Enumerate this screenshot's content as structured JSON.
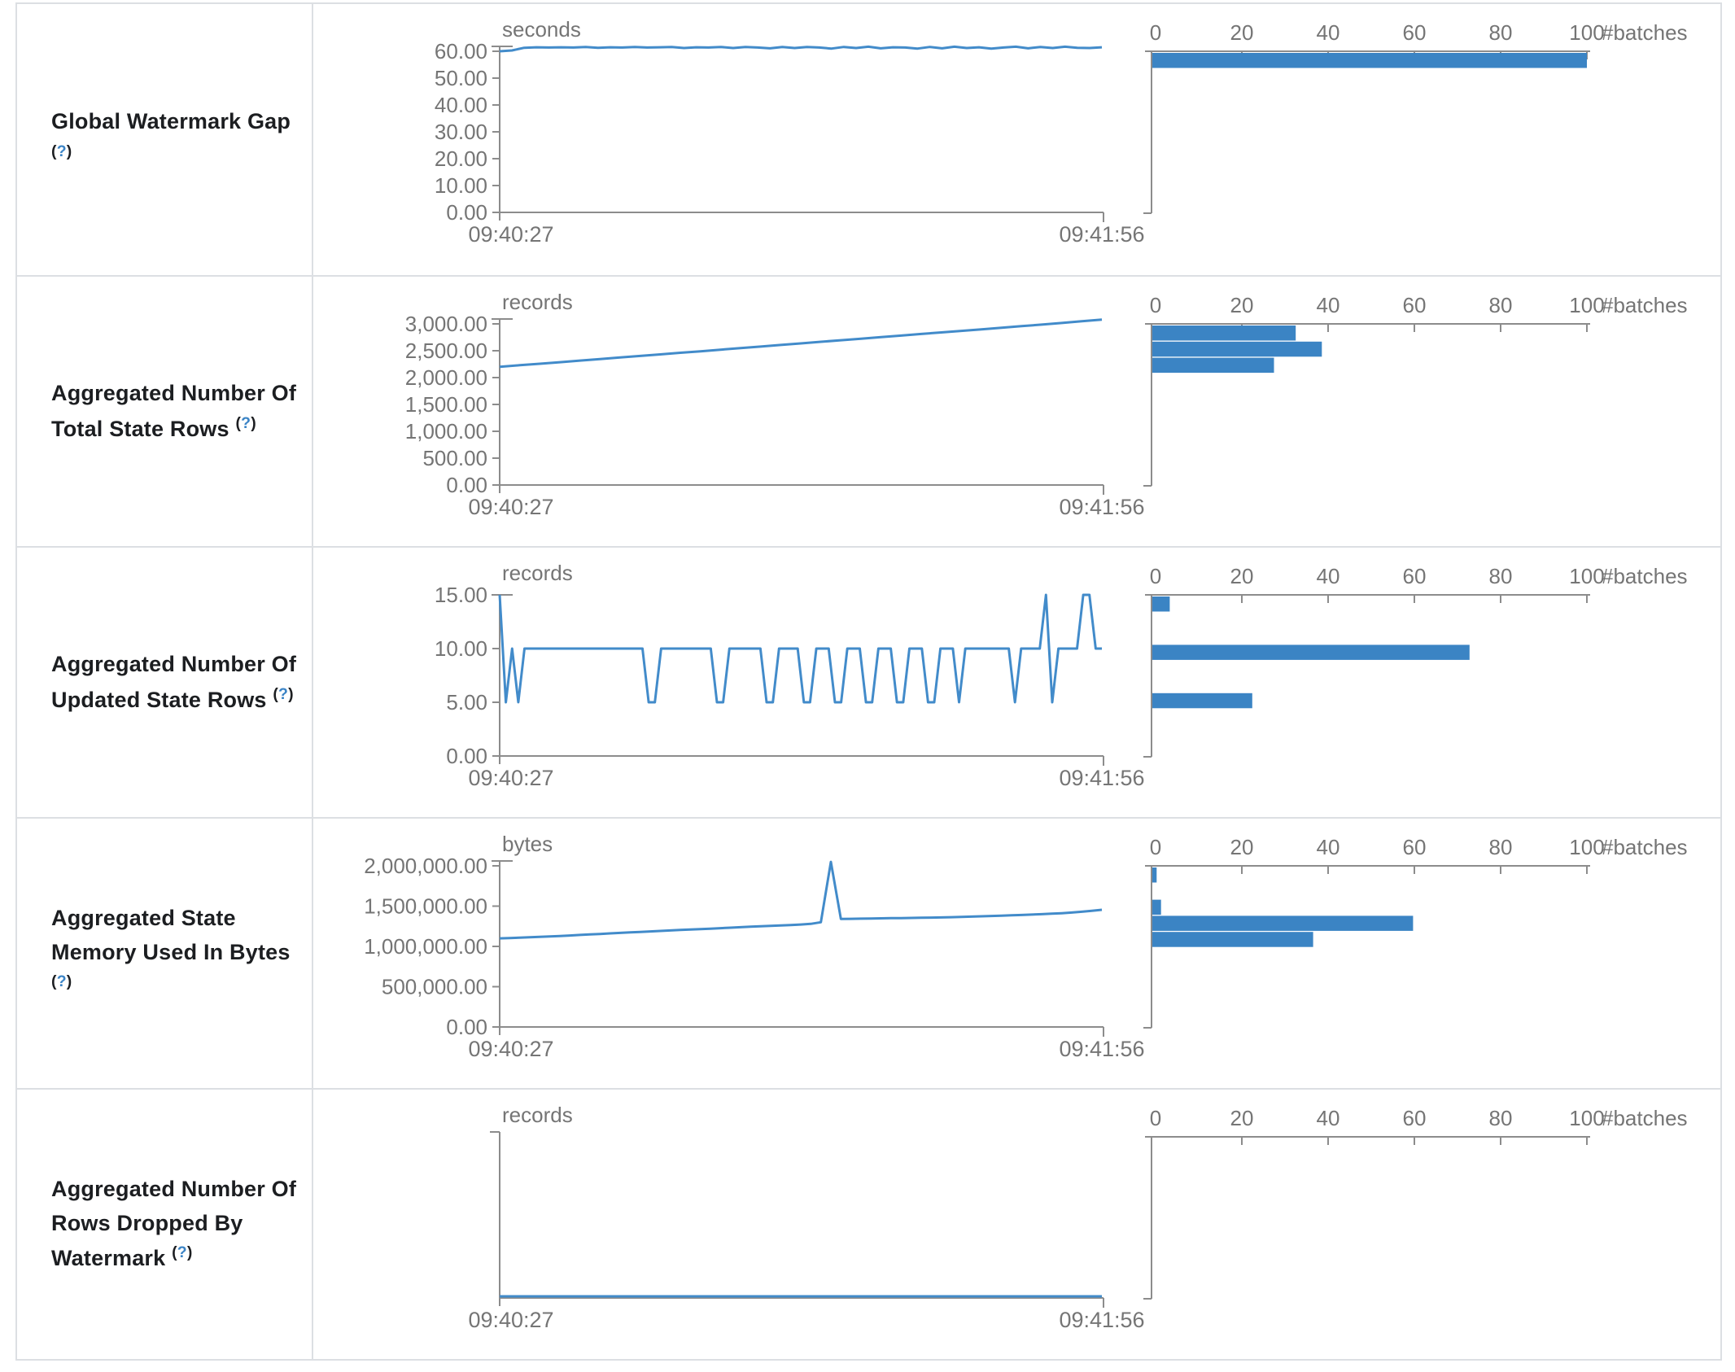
{
  "ui": {
    "help_open": "(",
    "help_q": "?",
    "help_close": ")"
  },
  "colors": {
    "line": "#428bca",
    "bar": "#3b84c4",
    "axis": "#8c8c8c",
    "tick_text": "#757575",
    "title_text": "#1c1e21",
    "border": "#dcdfe3",
    "help_link": "#3b84c6"
  },
  "chart_data": [
    {
      "title": "Global Watermark Gap",
      "timeline": {
        "type": "line",
        "unit": "seconds",
        "y_max_value": 60,
        "cap_raised": true,
        "y_ticks": [
          {
            "label": "60.00",
            "v": 60
          },
          {
            "label": "50.00",
            "v": 50
          },
          {
            "label": "40.00",
            "v": 40
          },
          {
            "label": "30.00",
            "v": 30
          },
          {
            "label": "20.00",
            "v": 20
          },
          {
            "label": "10.00",
            "v": 10
          },
          {
            "label": "0.00",
            "v": 0
          }
        ],
        "x_start_label": "09:40:27",
        "x_end_label": "09:41:56",
        "series": [
          60,
          60.3,
          61.3,
          61.5,
          61.4,
          61.5,
          61.4,
          61.6,
          61.3,
          61.5,
          61.4,
          61.6,
          61.4,
          61.5,
          61.6,
          61.2,
          61.5,
          61.4,
          61.6,
          61.2,
          61.6,
          61.4,
          61.1,
          61.6,
          61.2,
          61.6,
          61.4,
          61.0,
          61.6,
          61.2,
          61.7,
          61.1,
          61.5,
          61.4,
          61.0,
          61.6,
          61.1,
          61.7,
          61.2,
          61.5,
          61.0,
          61.4,
          61.7,
          61.1,
          61.6,
          61.2,
          61.7,
          61.3,
          61.2,
          61.5
        ]
      },
      "histogram": {
        "type": "bar",
        "axis_unit": "#batches",
        "x_ticks": [
          0,
          20,
          40,
          60,
          80,
          100
        ],
        "x_max": 100,
        "bars": [
          {
            "bin": 0,
            "value": 60,
            "count": 100
          }
        ]
      }
    },
    {
      "title": "Aggregated Number Of Total State Rows",
      "timeline": {
        "type": "line",
        "unit": "records",
        "y_max_value": 3000,
        "cap_raised": true,
        "y_ticks": [
          {
            "label": "3,000.00",
            "v": 3000
          },
          {
            "label": "2,500.00",
            "v": 2500
          },
          {
            "label": "2,000.00",
            "v": 2000
          },
          {
            "label": "1,500.00",
            "v": 1500
          },
          {
            "label": "1,000.00",
            "v": 1000
          },
          {
            "label": "500.00",
            "v": 500
          },
          {
            "label": "0.00",
            "v": 0
          }
        ],
        "x_start_label": "09:40:27",
        "x_end_label": "09:41:56",
        "series": [
          2200,
          2230,
          2258,
          2286,
          2316,
          2345,
          2374,
          2403,
          2432,
          2462,
          2490,
          2520,
          2549,
          2578,
          2607,
          2636,
          2666,
          2695,
          2724,
          2753,
          2782,
          2812,
          2841,
          2870,
          2899,
          2928,
          2958,
          2987,
          3016,
          3048,
          3080
        ]
      },
      "histogram": {
        "type": "bar",
        "axis_unit": "#batches",
        "x_ticks": [
          0,
          20,
          40,
          60,
          80,
          100
        ],
        "x_max": 100,
        "bars": [
          {
            "bin": 0,
            "value": 2850,
            "count": 33
          },
          {
            "bin": 1,
            "value": 2550,
            "count": 39
          },
          {
            "bin": 2,
            "value": 2250,
            "count": 28
          }
        ]
      }
    },
    {
      "title": "Aggregated Number Of Updated State Rows",
      "timeline": {
        "type": "line",
        "unit": "records",
        "y_max_value": 15,
        "cap_raised": false,
        "y_ticks": [
          {
            "label": "15.00",
            "v": 15
          },
          {
            "label": "10.00",
            "v": 10
          },
          {
            "label": "5.00",
            "v": 5
          },
          {
            "label": "0.00",
            "v": 0
          }
        ],
        "x_start_label": "09:40:27",
        "x_end_label": "09:41:56",
        "series": [
          15,
          5,
          10,
          5,
          10,
          10,
          10,
          10,
          10,
          10,
          10,
          10,
          10,
          10,
          10,
          10,
          10,
          10,
          10,
          10,
          10,
          10,
          10,
          10,
          5,
          5,
          10,
          10,
          10,
          10,
          10,
          10,
          10,
          10,
          10,
          5,
          5,
          10,
          10,
          10,
          10,
          10,
          10,
          5,
          5,
          10,
          10,
          10,
          10,
          5,
          5,
          10,
          10,
          10,
          5,
          5,
          10,
          10,
          10,
          5,
          5,
          10,
          10,
          10,
          5,
          5,
          10,
          10,
          10,
          5,
          5,
          10,
          10,
          10,
          5,
          10,
          10,
          10,
          10,
          10,
          10,
          10,
          10,
          5,
          10,
          10,
          10,
          10,
          15,
          5,
          10,
          10,
          10,
          10,
          15,
          15,
          10,
          10
        ]
      },
      "histogram": {
        "type": "bar",
        "axis_unit": "#batches",
        "x_ticks": [
          0,
          20,
          40,
          60,
          80,
          100
        ],
        "x_max": 100,
        "bars": [
          {
            "bin": 0,
            "value": 15,
            "count": 4
          },
          {
            "bin": 3,
            "value": 10,
            "count": 73
          },
          {
            "bin": 6,
            "value": 5,
            "count": 23
          }
        ]
      }
    },
    {
      "title": "Aggregated State Memory Used In Bytes",
      "timeline": {
        "type": "line",
        "unit": "bytes",
        "y_max_value": 2000000,
        "cap_raised": true,
        "y_ticks": [
          {
            "label": "2,000,000.00",
            "v": 2000000
          },
          {
            "label": "1,500,000.00",
            "v": 1500000
          },
          {
            "label": "1,000,000.00",
            "v": 1000000
          },
          {
            "label": "500,000.00",
            "v": 500000
          },
          {
            "label": "0.00",
            "v": 0
          }
        ],
        "x_start_label": "09:40:27",
        "x_end_label": "09:41:56",
        "series": [
          1100000,
          1104000,
          1108000,
          1113000,
          1118000,
          1123000,
          1128000,
          1135000,
          1142000,
          1148000,
          1155000,
          1162000,
          1168000,
          1175000,
          1180000,
          1186000,
          1192000,
          1198000,
          1204000,
          1210000,
          1215000,
          1220000,
          1226000,
          1232000,
          1238000,
          1244000,
          1250000,
          1255000,
          1260000,
          1266000,
          1272000,
          1280000,
          1300000,
          2050000,
          1340000,
          1342000,
          1344000,
          1346000,
          1348000,
          1350000,
          1352000,
          1354000,
          1356000,
          1358000,
          1360000,
          1363000,
          1366000,
          1370000,
          1374000,
          1378000,
          1382000,
          1386000,
          1390000,
          1395000,
          1400000,
          1406000,
          1412000,
          1420000,
          1430000,
          1442000,
          1455000
        ]
      },
      "histogram": {
        "type": "bar",
        "axis_unit": "#batches",
        "x_ticks": [
          0,
          20,
          40,
          60,
          80,
          100
        ],
        "x_max": 100,
        "bars": [
          {
            "bin": 0,
            "value": 1950000,
            "count": 1
          },
          {
            "bin": 2,
            "value": 1550000,
            "count": 2
          },
          {
            "bin": 3,
            "value": 1350000,
            "count": 60
          },
          {
            "bin": 4,
            "value": 1150000,
            "count": 37
          }
        ]
      }
    },
    {
      "title": "Aggregated Number Of Rows Dropped By Watermark",
      "timeline": {
        "type": "line",
        "unit": "records",
        "y_max_value": null,
        "cap_raised": true,
        "y_ticks": [],
        "x_start_label": "09:40:27",
        "x_end_label": "09:41:56",
        "series": [
          0,
          0
        ]
      },
      "histogram": {
        "type": "bar",
        "axis_unit": "#batches",
        "x_ticks": [
          0,
          20,
          40,
          60,
          80,
          100
        ],
        "x_max": 100,
        "bars": []
      }
    }
  ]
}
